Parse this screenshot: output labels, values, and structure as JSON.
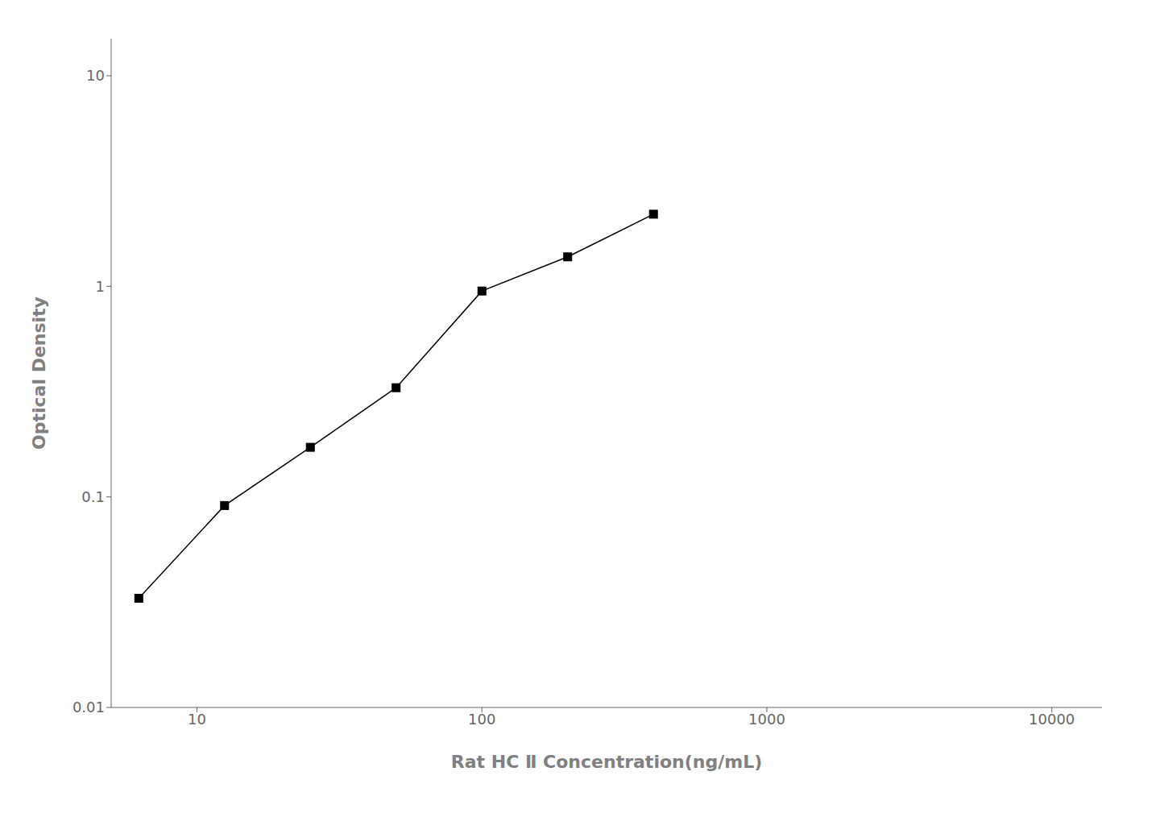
{
  "chart_data": {
    "type": "line",
    "xlabel": "Rat HC Ⅱ Concentration(ng/mL)",
    "ylabel": "Optical Density",
    "x": [
      6.25,
      12.5,
      25,
      50,
      100,
      200,
      400
    ],
    "values": [
      0.033,
      0.091,
      0.172,
      0.33,
      0.95,
      1.38,
      2.2
    ],
    "xlim": [
      5,
      15000
    ],
    "ylim": [
      0.01,
      15
    ],
    "xticks": [
      10,
      100,
      1000,
      10000
    ],
    "yticks": [
      0.01,
      0.1,
      1,
      10
    ],
    "log": true,
    "grid": false,
    "color": "#000000",
    "marker": "square"
  }
}
